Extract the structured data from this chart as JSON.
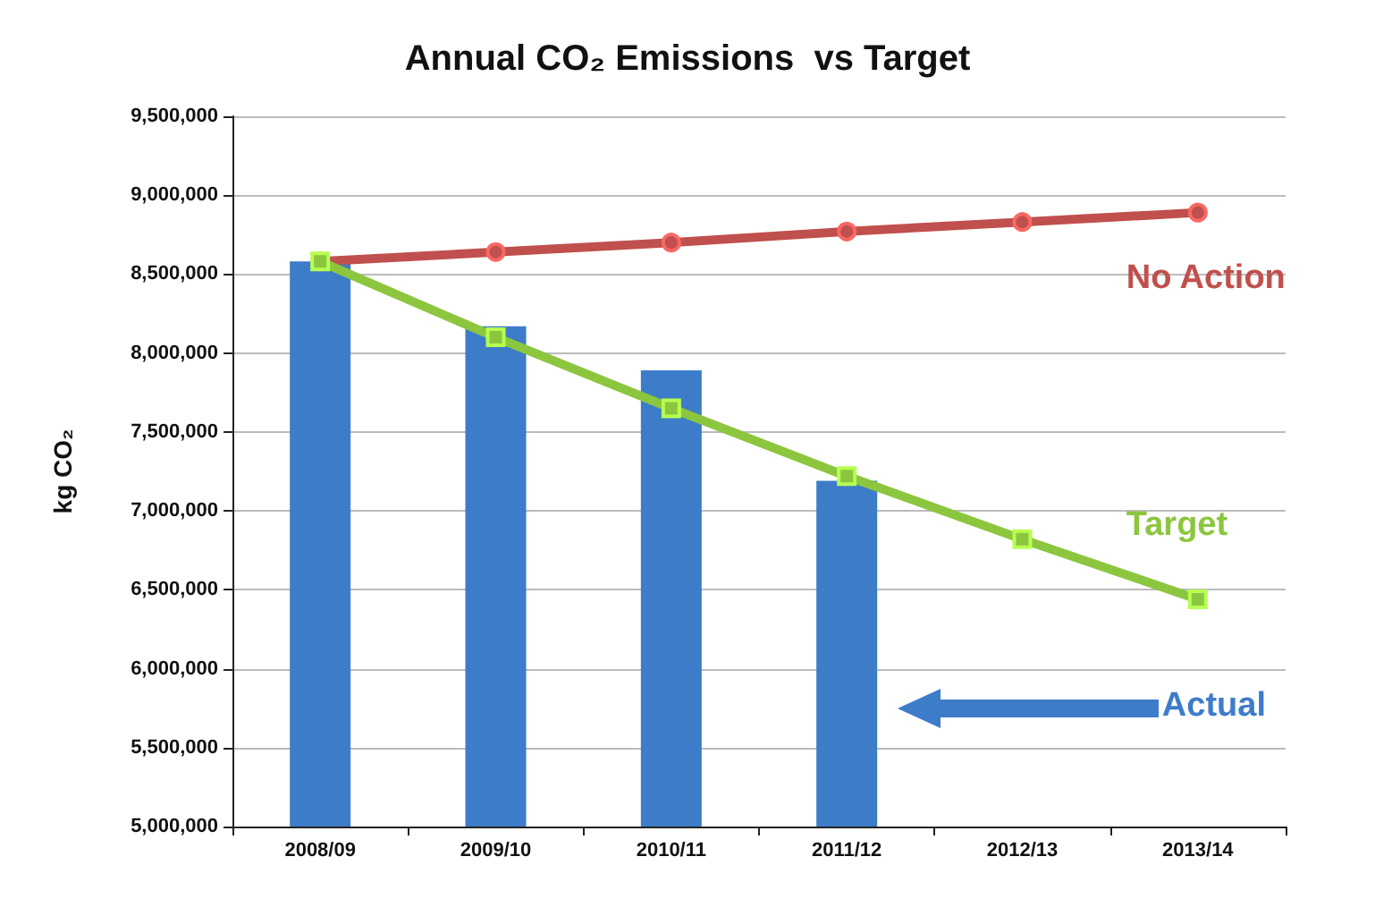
{
  "chart_data": {
    "type": "bar",
    "title": "Annual CO₂ Emissions  vs Target",
    "ylabel": "kg CO₂",
    "categories": [
      "2008/09",
      "2009/10",
      "2010/11",
      "2011/12",
      "2012/13",
      "2013/14"
    ],
    "series": [
      {
        "name": "Actual",
        "color": "#3d7cc9",
        "values": [
          8580000,
          8170000,
          7890000,
          7190000,
          null,
          null
        ]
      },
      {
        "name": "No Action",
        "type": "line",
        "color": "#c0504d",
        "marker": "circle",
        "values": [
          8580000,
          8640000,
          8700000,
          8770000,
          8830000,
          8890000
        ]
      },
      {
        "name": "Target",
        "type": "line",
        "color": "#8cc63f",
        "marker": "square",
        "values": [
          8580000,
          8100000,
          7650000,
          7220000,
          6820000,
          6440000
        ]
      }
    ],
    "ylim": [
      5000000,
      9500000
    ],
    "yticks": [
      {
        "value": 5000000,
        "label": "5,000,000"
      },
      {
        "value": 5500000,
        "label": "5,500,000"
      },
      {
        "value": 6000000,
        "label": "6,000,000"
      },
      {
        "value": 6500000,
        "label": "6,500,000"
      },
      {
        "value": 7000000,
        "label": "7,000,000"
      },
      {
        "value": 7500000,
        "label": "7,500,000"
      },
      {
        "value": 8000000,
        "label": "8,000,000"
      },
      {
        "value": 8500000,
        "label": "8,500,000"
      },
      {
        "value": 9000000,
        "label": "9,000,000"
      },
      {
        "value": 9500000,
        "label": "9,500,000"
      }
    ],
    "grid": "y",
    "legend": false
  }
}
